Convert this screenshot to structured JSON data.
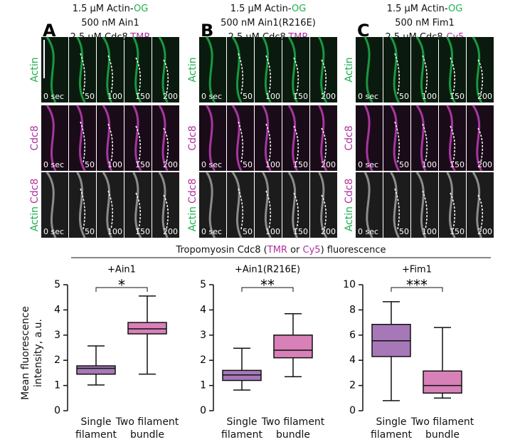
{
  "panels": [
    {
      "letter": "A",
      "header": [
        [
          "1.5 µM Actin-",
          "OG"
        ],
        [
          "500 nM Ain1"
        ],
        [
          "2.5 µM Cdc8-",
          "TMR"
        ]
      ]
    },
    {
      "letter": "B",
      "header": [
        [
          "1.5 µM Actin-",
          "OG"
        ],
        [
          "500 nM Ain1(R216E)"
        ],
        [
          "2.5 µM Cdc8-",
          "TMR"
        ]
      ]
    },
    {
      "letter": "C",
      "header": [
        [
          "1.5 µM Actin-",
          "OG"
        ],
        [
          "500 nM Fim1"
        ],
        [
          "2.5 µM Cdc8-",
          "Cy5"
        ]
      ]
    }
  ],
  "rows": [
    [
      "Actin"
    ],
    [
      "Cdc8"
    ],
    [
      "Actin",
      "Cdc8"
    ]
  ],
  "times": [
    "0 sec",
    "50",
    "100",
    "150",
    "200"
  ],
  "section_title": [
    "Tropomyosin Cdc8 (",
    "TMR",
    " or ",
    "Cy5",
    ") fluorescence"
  ],
  "chart_data": [
    {
      "type": "box",
      "title": "+Ain1",
      "ylabel": "Mean fluorescence intensity, a.u.",
      "annotation": "*",
      "categories": [
        "Single filament",
        "Two filament bundle"
      ],
      "colors": [
        "#a678b8",
        "#d880b8"
      ],
      "boxes": [
        {
          "min": 1.02,
          "q1": 1.45,
          "median": 1.68,
          "q3": 1.78,
          "max": 2.57
        },
        {
          "min": 1.45,
          "q1": 3.05,
          "median": 3.25,
          "q3": 3.5,
          "max": 4.55
        }
      ],
      "ylim": [
        0,
        5
      ],
      "yticks": [
        0,
        1,
        2,
        3,
        4,
        5
      ]
    },
    {
      "type": "box",
      "title": "+Ain1(R216E)",
      "annotation": "**",
      "categories": [
        "Single filament",
        "Two filament bundle"
      ],
      "colors": [
        "#a678b8",
        "#d880b8"
      ],
      "boxes": [
        {
          "min": 0.82,
          "q1": 1.2,
          "median": 1.42,
          "q3": 1.6,
          "max": 2.48
        },
        {
          "min": 1.35,
          "q1": 2.1,
          "median": 2.4,
          "q3": 3.0,
          "max": 3.85
        }
      ],
      "ylim": [
        0,
        5
      ],
      "yticks": [
        0,
        1,
        2,
        3,
        4,
        5
      ]
    },
    {
      "type": "box",
      "title": "+Fim1",
      "annotation": "***",
      "categories": [
        "Single filament",
        "Two filament bundle"
      ],
      "colors": [
        "#a678b8",
        "#d880b8"
      ],
      "boxes": [
        {
          "min": 0.8,
          "q1": 4.3,
          "median": 5.55,
          "q3": 6.85,
          "max": 8.65
        },
        {
          "min": 1.0,
          "q1": 1.4,
          "median": 2.0,
          "q3": 3.15,
          "max": 6.6
        }
      ],
      "ylim": [
        0,
        10
      ],
      "yticks": [
        0,
        2,
        4,
        6,
        8,
        10
      ]
    }
  ]
}
